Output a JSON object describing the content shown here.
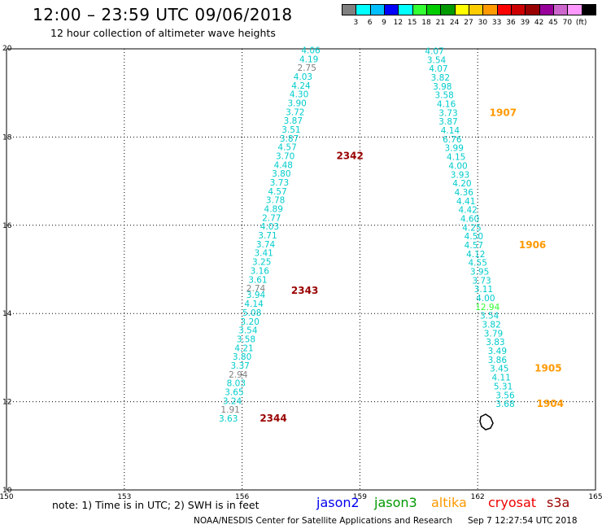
{
  "header": {
    "title": "12:00 – 23:59 UTC 09/06/2018",
    "subtitle": "12 hour collection of altimeter wave heights"
  },
  "colorbar": {
    "colors": [
      "#808080",
      "#00ffff",
      "#00bfff",
      "#0000ff",
      "#00ffff",
      "#33ff33",
      "#00cc00",
      "#009900",
      "#ffff00",
      "#ffcc00",
      "#ff9900",
      "#ff0000",
      "#cc0000",
      "#990000",
      "#990099",
      "#cc66cc",
      "#ff99ff",
      "#000000"
    ],
    "labels": [
      "3",
      "6",
      "9",
      "12",
      "15",
      "18",
      "21",
      "24",
      "27",
      "30",
      "33",
      "36",
      "39",
      "42",
      "45",
      "70",
      "(ft)"
    ]
  },
  "footer": {
    "note": "note:  1) Time is in UTC;  2) SWH is in feet",
    "satellites": [
      {
        "name": "jason2",
        "color": "#0000ee"
      },
      {
        "name": "jason3",
        "color": "#009900"
      },
      {
        "name": "altika",
        "color": "#ff9900"
      },
      {
        "name": "cryosat",
        "color": "#ee0000"
      },
      {
        "name": "s3a",
        "color": "#990000"
      }
    ],
    "credit": "NOAA/NESDIS Center for Satellite Applications and Research",
    "timestamp": "Sep  7 12:27:54 UTC 2018"
  },
  "chart_data": {
    "type": "scatter",
    "xlim": [
      150,
      165
    ],
    "ylim": [
      10,
      20
    ],
    "xticks": [
      "150",
      "153",
      "156",
      "159",
      "162",
      "165"
    ],
    "yticks": [
      "10",
      "12",
      "14",
      "16",
      "18",
      "20"
    ],
    "grid": true,
    "tracks": [
      {
        "name": "s3a",
        "label_color": "#990000",
        "points": [
          {
            "x": 157.75,
            "y": 19.9,
            "v": "4.06",
            "c": "#00cccc"
          },
          {
            "x": 157.7,
            "y": 19.7,
            "v": "4.19",
            "c": "#00cccc"
          },
          {
            "x": 157.65,
            "y": 19.5,
            "v": "2.75",
            "c": "#808080"
          },
          {
            "x": 157.55,
            "y": 19.3,
            "v": "4.03",
            "c": "#00cccc"
          },
          {
            "x": 157.5,
            "y": 19.1,
            "v": "4.24",
            "c": "#00cccc"
          },
          {
            "x": 157.45,
            "y": 18.9,
            "v": "4.30",
            "c": "#00cccc"
          },
          {
            "x": 157.4,
            "y": 18.7,
            "v": "3.90",
            "c": "#00cccc"
          },
          {
            "x": 157.35,
            "y": 18.5,
            "v": "3.72",
            "c": "#00cccc"
          },
          {
            "x": 157.3,
            "y": 18.3,
            "v": "3.87",
            "c": "#00cccc"
          },
          {
            "x": 157.25,
            "y": 18.1,
            "v": "3.51",
            "c": "#00cccc"
          },
          {
            "x": 157.2,
            "y": 17.9,
            "v": "3.87",
            "c": "#00cccc"
          },
          {
            "x": 157.15,
            "y": 17.7,
            "v": "4.57",
            "c": "#00cccc"
          },
          {
            "x": 157.1,
            "y": 17.5,
            "v": "3.70",
            "c": "#00cccc"
          },
          {
            "x": 157.05,
            "y": 17.3,
            "v": "4.48",
            "c": "#00cccc"
          },
          {
            "x": 157.0,
            "y": 17.1,
            "v": "3.80",
            "c": "#00cccc"
          },
          {
            "x": 156.95,
            "y": 16.9,
            "v": "3.73",
            "c": "#00cccc"
          },
          {
            "x": 156.9,
            "y": 16.7,
            "v": "4.57",
            "c": "#00cccc"
          },
          {
            "x": 156.85,
            "y": 16.5,
            "v": "3.78",
            "c": "#00cccc"
          },
          {
            "x": 156.8,
            "y": 16.3,
            "v": "4.89",
            "c": "#00cccc"
          },
          {
            "x": 156.75,
            "y": 16.1,
            "v": "2.77",
            "c": "#00cccc"
          },
          {
            "x": 156.7,
            "y": 15.9,
            "v": "4.03",
            "c": "#00cccc"
          },
          {
            "x": 156.65,
            "y": 15.7,
            "v": "3.71",
            "c": "#00cccc"
          },
          {
            "x": 156.6,
            "y": 15.5,
            "v": "3.74",
            "c": "#00cccc"
          },
          {
            "x": 156.55,
            "y": 15.3,
            "v": "3.41",
            "c": "#00cccc"
          },
          {
            "x": 156.5,
            "y": 15.1,
            "v": "3.25",
            "c": "#00cccc"
          },
          {
            "x": 156.45,
            "y": 14.9,
            "v": "3.16",
            "c": "#00cccc"
          },
          {
            "x": 156.4,
            "y": 14.7,
            "v": "3.61",
            "c": "#00cccc"
          },
          {
            "x": 156.35,
            "y": 14.5,
            "v": "2.74",
            "c": "#808080"
          },
          {
            "x": 156.35,
            "y": 14.35,
            "v": "3.94",
            "c": "#00cccc"
          },
          {
            "x": 156.3,
            "y": 14.15,
            "v": "4.14",
            "c": "#00cccc"
          },
          {
            "x": 156.25,
            "y": 13.95,
            "v": "5.08",
            "c": "#00cccc"
          },
          {
            "x": 156.2,
            "y": 13.75,
            "v": "3.20",
            "c": "#00cccc"
          },
          {
            "x": 156.15,
            "y": 13.55,
            "v": "3.54",
            "c": "#00cccc"
          },
          {
            "x": 156.1,
            "y": 13.35,
            "v": "3.58",
            "c": "#00cccc"
          },
          {
            "x": 156.05,
            "y": 13.15,
            "v": "4.21",
            "c": "#00cccc"
          },
          {
            "x": 156.0,
            "y": 12.95,
            "v": "3.80",
            "c": "#00cccc"
          },
          {
            "x": 155.95,
            "y": 12.75,
            "v": "3.37",
            "c": "#00cccc"
          },
          {
            "x": 155.9,
            "y": 12.55,
            "v": "2.94",
            "c": "#808080"
          },
          {
            "x": 155.85,
            "y": 12.35,
            "v": "8.03",
            "c": "#00cccc"
          },
          {
            "x": 155.8,
            "y": 12.15,
            "v": "3.65",
            "c": "#00cccc"
          },
          {
            "x": 155.75,
            "y": 11.95,
            "v": "3.24",
            "c": "#00cccc"
          },
          {
            "x": 155.7,
            "y": 11.75,
            "v": "1.91",
            "c": "#808080"
          },
          {
            "x": 155.65,
            "y": 11.55,
            "v": "3.63",
            "c": "#00cccc"
          }
        ],
        "times": [
          {
            "x": 158.4,
            "y": 17.5,
            "label": "2342"
          },
          {
            "x": 157.25,
            "y": 14.45,
            "label": "2343"
          },
          {
            "x": 156.45,
            "y": 11.55,
            "label": "2344"
          }
        ]
      },
      {
        "name": "altika",
        "label_color": "#ff9900",
        "points": [
          {
            "x": 160.9,
            "y": 19.88,
            "v": "4.07",
            "c": "#00cccc"
          },
          {
            "x": 160.95,
            "y": 19.68,
            "v": "3.54",
            "c": "#00cccc"
          },
          {
            "x": 161.0,
            "y": 19.48,
            "v": "4.07",
            "c": "#00cccc"
          },
          {
            "x": 161.05,
            "y": 19.28,
            "v": "3.82",
            "c": "#00cccc"
          },
          {
            "x": 161.1,
            "y": 19.08,
            "v": "3.98",
            "c": "#00cccc"
          },
          {
            "x": 161.15,
            "y": 18.88,
            "v": "3.58",
            "c": "#00cccc"
          },
          {
            "x": 161.2,
            "y": 18.68,
            "v": "4.16",
            "c": "#00cccc"
          },
          {
            "x": 161.25,
            "y": 18.48,
            "v": "3.73",
            "c": "#00cccc"
          },
          {
            "x": 161.25,
            "y": 18.28,
            "v": "3.87",
            "c": "#00cccc"
          },
          {
            "x": 161.3,
            "y": 18.08,
            "v": "4.14",
            "c": "#00cccc"
          },
          {
            "x": 161.35,
            "y": 17.88,
            "v": "6.76",
            "c": "#00cccc"
          },
          {
            "x": 161.4,
            "y": 17.68,
            "v": "3.99",
            "c": "#00cccc"
          },
          {
            "x": 161.45,
            "y": 17.48,
            "v": "4.15",
            "c": "#00cccc"
          },
          {
            "x": 161.5,
            "y": 17.28,
            "v": "4.00",
            "c": "#00cccc"
          },
          {
            "x": 161.55,
            "y": 17.08,
            "v": "3.93",
            "c": "#00cccc"
          },
          {
            "x": 161.6,
            "y": 16.88,
            "v": "4.20",
            "c": "#00cccc"
          },
          {
            "x": 161.65,
            "y": 16.68,
            "v": "4.36",
            "c": "#00cccc"
          },
          {
            "x": 161.7,
            "y": 16.48,
            "v": "4.41",
            "c": "#00cccc"
          },
          {
            "x": 161.75,
            "y": 16.28,
            "v": "4.42",
            "c": "#00cccc"
          },
          {
            "x": 161.8,
            "y": 16.08,
            "v": "4.60",
            "c": "#00cccc"
          },
          {
            "x": 161.85,
            "y": 15.88,
            "v": "4.25",
            "c": "#00cccc"
          },
          {
            "x": 161.9,
            "y": 15.68,
            "v": "4.50",
            "c": "#00cccc"
          },
          {
            "x": 161.9,
            "y": 15.48,
            "v": "4.57",
            "c": "#00cccc"
          },
          {
            "x": 161.95,
            "y": 15.28,
            "v": "4.12",
            "c": "#00cccc"
          },
          {
            "x": 162.0,
            "y": 15.08,
            "v": "4.55",
            "c": "#00cccc"
          },
          {
            "x": 162.05,
            "y": 14.88,
            "v": "3.95",
            "c": "#00cccc"
          },
          {
            "x": 162.1,
            "y": 14.68,
            "v": "3.73",
            "c": "#00cccc"
          },
          {
            "x": 162.15,
            "y": 14.48,
            "v": "3.11",
            "c": "#00cccc"
          },
          {
            "x": 162.2,
            "y": 14.28,
            "v": "4.00",
            "c": "#00cccc"
          },
          {
            "x": 162.25,
            "y": 14.08,
            "v": "12.94",
            "c": "#33ff33"
          },
          {
            "x": 162.3,
            "y": 13.88,
            "v": "3.54",
            "c": "#00cccc"
          },
          {
            "x": 162.35,
            "y": 13.68,
            "v": "3.82",
            "c": "#00cccc"
          },
          {
            "x": 162.4,
            "y": 13.48,
            "v": "3.79",
            "c": "#00cccc"
          },
          {
            "x": 162.45,
            "y": 13.28,
            "v": "3.83",
            "c": "#00cccc"
          },
          {
            "x": 162.5,
            "y": 13.08,
            "v": "3.49",
            "c": "#00cccc"
          },
          {
            "x": 162.5,
            "y": 12.88,
            "v": "3.86",
            "c": "#00cccc"
          },
          {
            "x": 162.55,
            "y": 12.68,
            "v": "3.45",
            "c": "#00cccc"
          },
          {
            "x": 162.6,
            "y": 12.48,
            "v": "4.11",
            "c": "#00cccc"
          },
          {
            "x": 162.65,
            "y": 12.28,
            "v": "5.31",
            "c": "#00cccc"
          },
          {
            "x": 162.7,
            "y": 12.08,
            "v": "3.56",
            "c": "#00cccc"
          },
          {
            "x": 162.7,
            "y": 11.88,
            "v": "3.68",
            "c": "#00cccc"
          }
        ],
        "times": [
          {
            "x": 162.3,
            "y": 18.48,
            "label": "1907"
          },
          {
            "x": 163.05,
            "y": 15.48,
            "label": "1906"
          },
          {
            "x": 163.45,
            "y": 12.68,
            "label": "1905"
          },
          {
            "x": 163.5,
            "y": 11.88,
            "label": "1904"
          }
        ]
      }
    ]
  }
}
